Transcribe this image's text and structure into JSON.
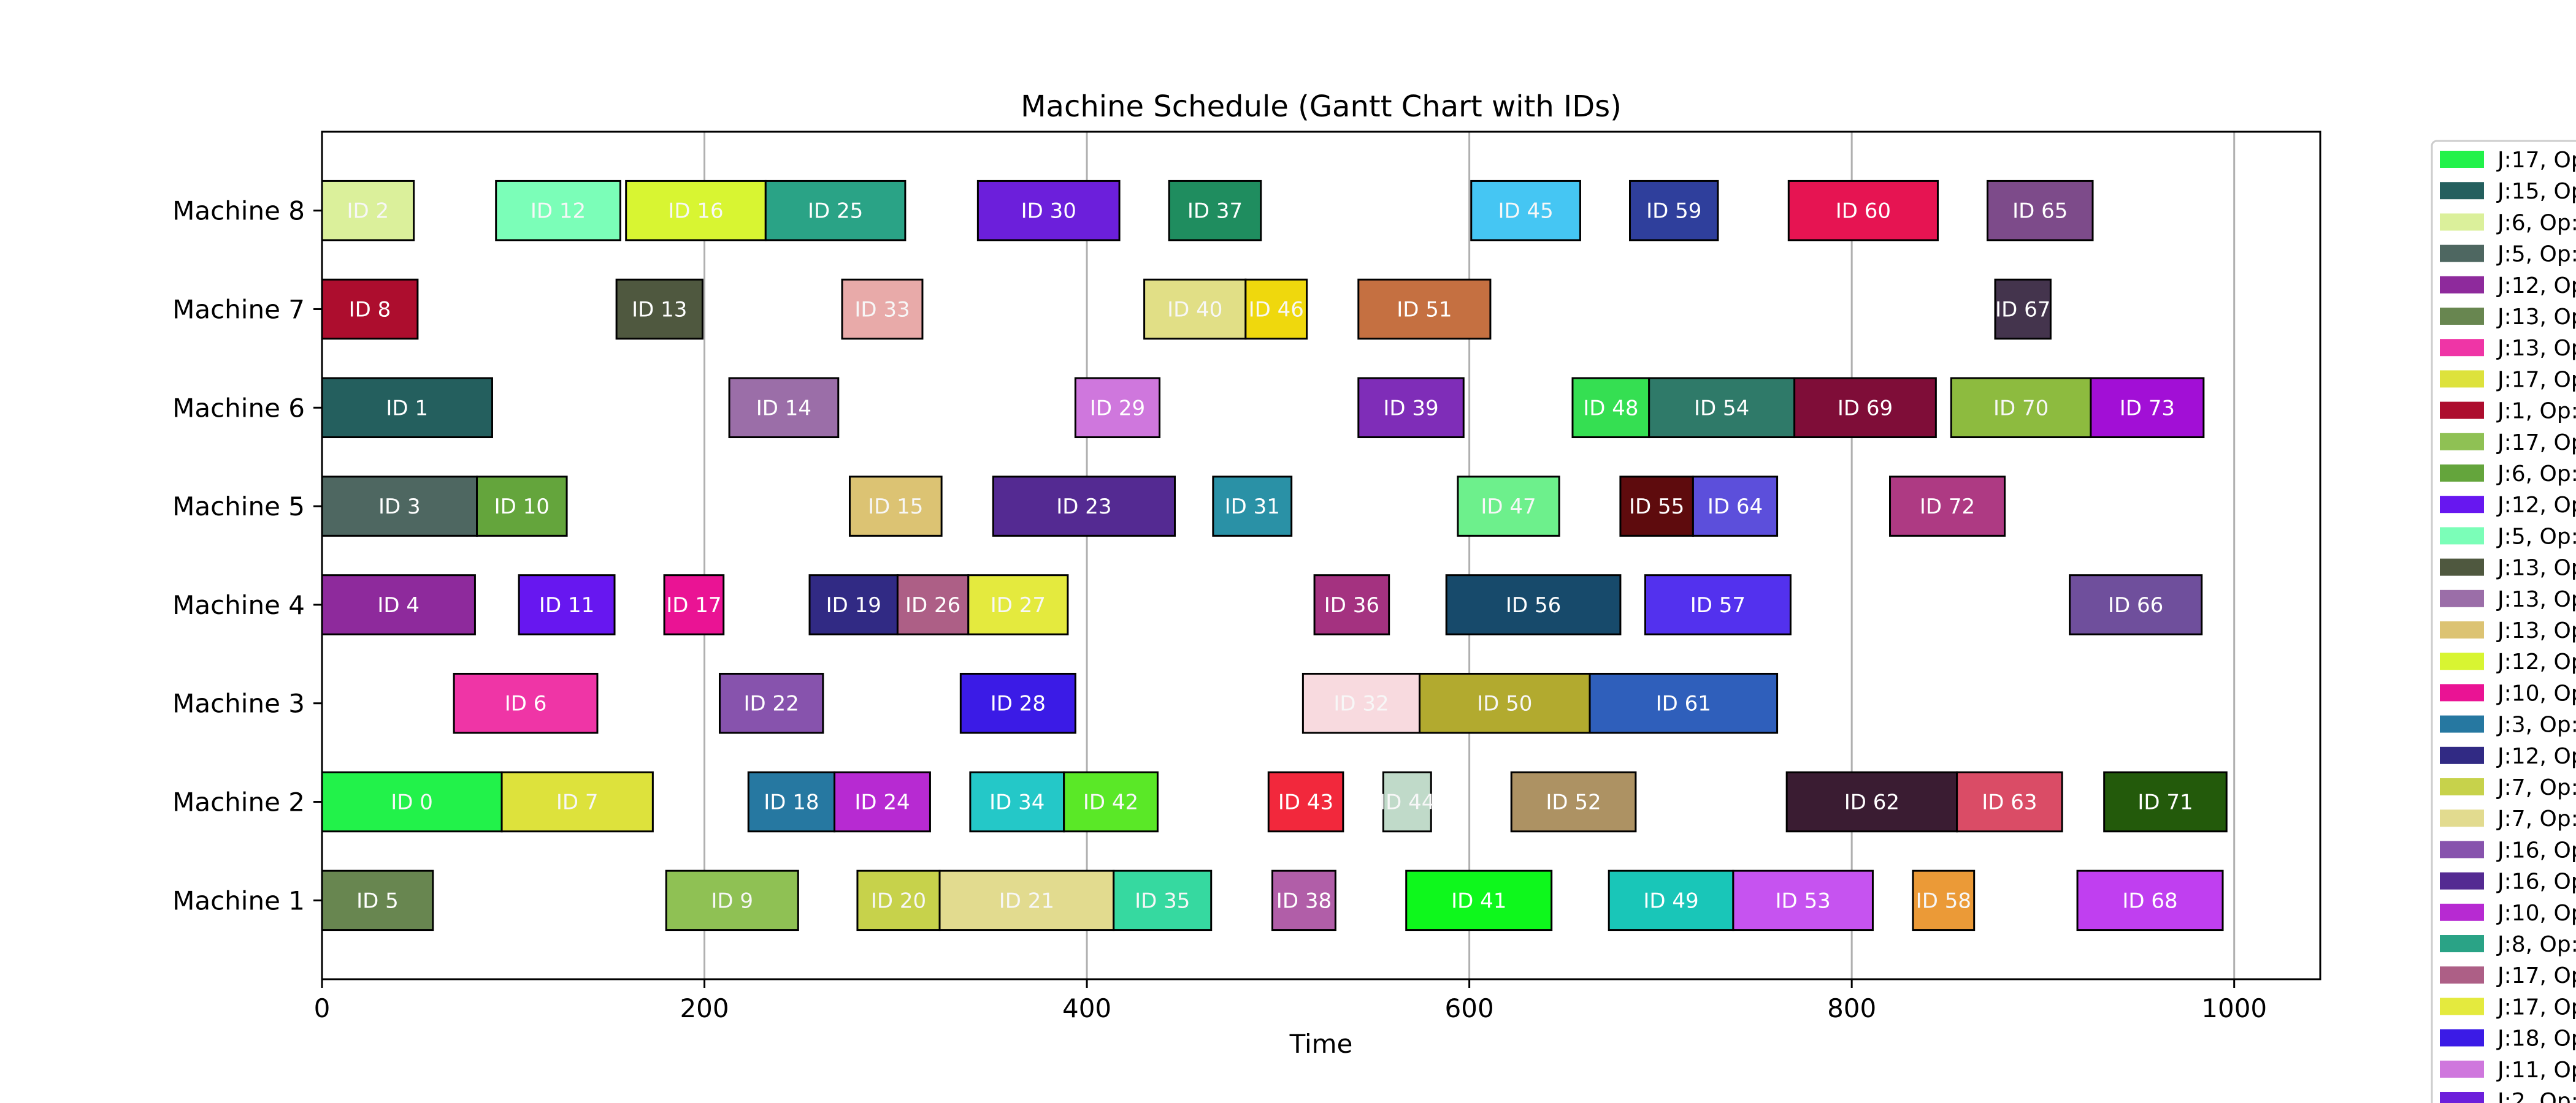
{
  "chart_data": {
    "type": "gantt",
    "title": "Machine Schedule (Gantt Chart with IDs)",
    "xlabel": "Time",
    "ylabel": "",
    "xlim": [
      0,
      1045
    ],
    "xticks": [
      0,
      200,
      400,
      600,
      800,
      1000
    ],
    "grid": "vertical",
    "machines": [
      "Machine 1",
      "Machine 2",
      "Machine 3",
      "Machine 4",
      "Machine 5",
      "Machine 6",
      "Machine 7",
      "Machine 8"
    ],
    "tasks": [
      {
        "id": "ID 0",
        "machine": "Machine 2",
        "start": 0,
        "end": 94,
        "color": "#22f24a"
      },
      {
        "id": "ID 1",
        "machine": "Machine 6",
        "start": 0,
        "end": 89,
        "color": "#245f5e"
      },
      {
        "id": "ID 2",
        "machine": "Machine 8",
        "start": 0,
        "end": 48,
        "color": "#dbf09b"
      },
      {
        "id": "ID 3",
        "machine": "Machine 5",
        "start": 0,
        "end": 81,
        "color": "#4e6761"
      },
      {
        "id": "ID 4",
        "machine": "Machine 4",
        "start": 0,
        "end": 80,
        "color": "#8e2a9c"
      },
      {
        "id": "ID 5",
        "machine": "Machine 1",
        "start": 0,
        "end": 58,
        "color": "#688650"
      },
      {
        "id": "ID 6",
        "machine": "Machine 3",
        "start": 69,
        "end": 144,
        "color": "#ef35a6"
      },
      {
        "id": "ID 7",
        "machine": "Machine 2",
        "start": 94,
        "end": 173,
        "color": "#dde23c"
      },
      {
        "id": "ID 8",
        "machine": "Machine 7",
        "start": 0,
        "end": 50,
        "color": "#ad0d2e"
      },
      {
        "id": "ID 9",
        "machine": "Machine 1",
        "start": 180,
        "end": 249,
        "color": "#8fc154"
      },
      {
        "id": "ID 10",
        "machine": "Machine 5",
        "start": 81,
        "end": 128,
        "color": "#64a53c"
      },
      {
        "id": "ID 11",
        "machine": "Machine 4",
        "start": 103,
        "end": 153,
        "color": "#6717f0"
      },
      {
        "id": "ID 12",
        "machine": "Machine 8",
        "start": 91,
        "end": 156,
        "color": "#7bfeb8"
      },
      {
        "id": "ID 13",
        "machine": "Machine 7",
        "start": 154,
        "end": 199,
        "color": "#4f583f"
      },
      {
        "id": "ID 14",
        "machine": "Machine 6",
        "start": 213,
        "end": 270,
        "color": "#9b6ea8"
      },
      {
        "id": "ID 15",
        "machine": "Machine 5",
        "start": 276,
        "end": 324,
        "color": "#dcc373"
      },
      {
        "id": "ID 16",
        "machine": "Machine 8",
        "start": 159,
        "end": 232,
        "color": "#d8f532"
      },
      {
        "id": "ID 17",
        "machine": "Machine 4",
        "start": 179,
        "end": 210,
        "color": "#ea1394"
      },
      {
        "id": "ID 18",
        "machine": "Machine 2",
        "start": 223,
        "end": 268,
        "color": "#2678a1"
      },
      {
        "id": "ID 19",
        "machine": "Machine 4",
        "start": 255,
        "end": 301,
        "color": "#312a84"
      },
      {
        "id": "ID 20",
        "machine": "Machine 1",
        "start": 280,
        "end": 323,
        "color": "#c7d24b"
      },
      {
        "id": "ID 21",
        "machine": "Machine 1",
        "start": 323,
        "end": 414,
        "color": "#e2db8f"
      },
      {
        "id": "ID 22",
        "machine": "Machine 3",
        "start": 208,
        "end": 262,
        "color": "#8753ad"
      },
      {
        "id": "ID 23",
        "machine": "Machine 5",
        "start": 351,
        "end": 446,
        "color": "#542a92"
      },
      {
        "id": "ID 24",
        "machine": "Machine 2",
        "start": 268,
        "end": 318,
        "color": "#b72ad2"
      },
      {
        "id": "ID 25",
        "machine": "Machine 8",
        "start": 232,
        "end": 305,
        "color": "#2aa386"
      },
      {
        "id": "ID 26",
        "machine": "Machine 4",
        "start": 301,
        "end": 338,
        "color": "#ad5f86"
      },
      {
        "id": "ID 27",
        "machine": "Machine 4",
        "start": 338,
        "end": 390,
        "color": "#e4ea3e"
      },
      {
        "id": "ID 28",
        "machine": "Machine 3",
        "start": 334,
        "end": 394,
        "color": "#3b1be6"
      },
      {
        "id": "ID 29",
        "machine": "Machine 6",
        "start": 394,
        "end": 438,
        "color": "#cf77dd"
      },
      {
        "id": "ID 30",
        "machine": "Machine 8",
        "start": 343,
        "end": 417,
        "color": "#6c1fdb"
      },
      {
        "id": "ID 31",
        "machine": "Machine 5",
        "start": 466,
        "end": 507,
        "color": "#2a91a6"
      },
      {
        "id": "ID 32",
        "machine": "Machine 3",
        "start": 513,
        "end": 574,
        "color": "#f8dadf"
      },
      {
        "id": "ID 33",
        "machine": "Machine 7",
        "start": 272,
        "end": 314,
        "color": "#e8aaa9"
      },
      {
        "id": "ID 34",
        "machine": "Machine 2",
        "start": 339,
        "end": 388,
        "color": "#24c8c8"
      },
      {
        "id": "ID 35",
        "machine": "Machine 1",
        "start": 414,
        "end": 465,
        "color": "#36d9a0"
      },
      {
        "id": "ID 36",
        "machine": "Machine 4",
        "start": 519,
        "end": 558,
        "color": "#a43280"
      },
      {
        "id": "ID 37",
        "machine": "Machine 8",
        "start": 443,
        "end": 491,
        "color": "#1f8d5f"
      },
      {
        "id": "ID 38",
        "machine": "Machine 1",
        "start": 497,
        "end": 530,
        "color": "#b15ea8"
      },
      {
        "id": "ID 39",
        "machine": "Machine 6",
        "start": 542,
        "end": 597,
        "color": "#7f2db8"
      },
      {
        "id": "ID 40",
        "machine": "Machine 7",
        "start": 430,
        "end": 483,
        "color": "#e1df86"
      },
      {
        "id": "ID 41",
        "machine": "Machine 1",
        "start": 567,
        "end": 643,
        "color": "#0ef81c"
      },
      {
        "id": "ID 42",
        "machine": "Machine 2",
        "start": 388,
        "end": 437,
        "color": "#5ae827"
      },
      {
        "id": "ID 43",
        "machine": "Machine 2",
        "start": 495,
        "end": 534,
        "color": "#f2283c"
      },
      {
        "id": "ID 44",
        "machine": "Machine 2",
        "start": 555,
        "end": 580,
        "color": "#c0dac9"
      },
      {
        "id": "ID 45",
        "machine": "Machine 8",
        "start": 601,
        "end": 658,
        "color": "#45c6f3"
      },
      {
        "id": "ID 46",
        "machine": "Machine 7",
        "start": 483,
        "end": 515,
        "color": "#efd80d"
      },
      {
        "id": "ID 47",
        "machine": "Machine 5",
        "start": 594,
        "end": 647,
        "color": "#6df08c"
      },
      {
        "id": "ID 48",
        "machine": "Machine 6",
        "start": 654,
        "end": 694,
        "color": "#35df52"
      },
      {
        "id": "ID 49",
        "machine": "Machine 1",
        "start": 673,
        "end": 738,
        "color": "#19c6b8"
      },
      {
        "id": "ID 50",
        "machine": "Machine 3",
        "start": 574,
        "end": 663,
        "color": "#b2aa2f"
      },
      {
        "id": "ID 51",
        "machine": "Machine 7",
        "start": 542,
        "end": 611,
        "color": "#c57041"
      },
      {
        "id": "ID 52",
        "machine": "Machine 2",
        "start": 622,
        "end": 687,
        "color": "#ad9263"
      },
      {
        "id": "ID 53",
        "machine": "Machine 1",
        "start": 738,
        "end": 811,
        "color": "#c653f0"
      },
      {
        "id": "ID 54",
        "machine": "Machine 6",
        "start": 694,
        "end": 770,
        "color": "#2f7a69"
      },
      {
        "id": "ID 55",
        "machine": "Machine 5",
        "start": 679,
        "end": 717,
        "color": "#5e0b0d"
      },
      {
        "id": "ID 56",
        "machine": "Machine 4",
        "start": 588,
        "end": 679,
        "color": "#174a6b"
      },
      {
        "id": "ID 57",
        "machine": "Machine 4",
        "start": 692,
        "end": 768,
        "color": "#5331ee"
      },
      {
        "id": "ID 58",
        "machine": "Machine 1",
        "start": 832,
        "end": 864,
        "color": "#eb9a37"
      },
      {
        "id": "ID 59",
        "machine": "Machine 8",
        "start": 684,
        "end": 730,
        "color": "#2f3f9c"
      },
      {
        "id": "ID 60",
        "machine": "Machine 8",
        "start": 767,
        "end": 845,
        "color": "#e61452"
      },
      {
        "id": "ID 61",
        "machine": "Machine 3",
        "start": 663,
        "end": 761,
        "color": "#2f5fbb"
      },
      {
        "id": "ID 62",
        "machine": "Machine 2",
        "start": 766,
        "end": 855,
        "color": "#3a1c32"
      },
      {
        "id": "ID 63",
        "machine": "Machine 2",
        "start": 855,
        "end": 910,
        "color": "#da4c66"
      },
      {
        "id": "ID 64",
        "machine": "Machine 5",
        "start": 717,
        "end": 761,
        "color": "#5c4fdb"
      },
      {
        "id": "ID 65",
        "machine": "Machine 8",
        "start": 871,
        "end": 926,
        "color": "#7d4b8a"
      },
      {
        "id": "ID 66",
        "machine": "Machine 4",
        "start": 914,
        "end": 983,
        "color": "#6f4f9c"
      },
      {
        "id": "ID 67",
        "machine": "Machine 7",
        "start": 875,
        "end": 904,
        "color": "#44344d"
      },
      {
        "id": "ID 68",
        "machine": "Machine 1",
        "start": 918,
        "end": 994,
        "color": "#c03ff0"
      },
      {
        "id": "ID 69",
        "machine": "Machine 6",
        "start": 770,
        "end": 844,
        "color": "#7f0d38"
      },
      {
        "id": "ID 70",
        "machine": "Machine 6",
        "start": 852,
        "end": 925,
        "color": "#8dbb3f"
      },
      {
        "id": "ID 71",
        "machine": "Machine 2",
        "start": 932,
        "end": 996,
        "color": "#235a0b"
      },
      {
        "id": "ID 72",
        "machine": "Machine 5",
        "start": 820,
        "end": 880,
        "color": "#ae3a83"
      },
      {
        "id": "ID 73",
        "machine": "Machine 6",
        "start": 925,
        "end": 984,
        "color": "#a20fd6"
      }
    ],
    "legend": {
      "placement": "right, outside plot (clipped)",
      "entries": [
        {
          "label": "J:17, Op",
          "color": "#22f24a"
        },
        {
          "label": "J:15, Op",
          "color": "#245f5e"
        },
        {
          "label": "J:6, Op:",
          "color": "#dbf09b"
        },
        {
          "label": "J:5, Op:",
          "color": "#4e6761"
        },
        {
          "label": "J:12, Op",
          "color": "#8e2a9c"
        },
        {
          "label": "J:13, Op",
          "color": "#688650"
        },
        {
          "label": "J:13, Op",
          "color": "#ef35a6"
        },
        {
          "label": "J:17, Op",
          "color": "#dde23c"
        },
        {
          "label": "J:1, Op:",
          "color": "#ad0d2e"
        },
        {
          "label": "J:17, Op",
          "color": "#8fc154"
        },
        {
          "label": "J:6, Op:",
          "color": "#64a53c"
        },
        {
          "label": "J:12, Op",
          "color": "#6717f0"
        },
        {
          "label": "J:5, Op:",
          "color": "#7bfeb8"
        },
        {
          "label": "J:13, Op",
          "color": "#4f583f"
        },
        {
          "label": "J:13, Op",
          "color": "#9b6ea8"
        },
        {
          "label": "J:13, Op",
          "color": "#dcc373"
        },
        {
          "label": "J:12, Op",
          "color": "#d8f532"
        },
        {
          "label": "J:10, Op",
          "color": "#ea1394"
        },
        {
          "label": "J:3, Op:",
          "color": "#2678a1"
        },
        {
          "label": "J:12, Op",
          "color": "#312a84"
        },
        {
          "label": "J:7, Op:",
          "color": "#c7d24b"
        },
        {
          "label": "J:7, Op:",
          "color": "#e2db8f"
        },
        {
          "label": "J:16, Op",
          "color": "#8753ad"
        },
        {
          "label": "J:16, Op",
          "color": "#542a92"
        },
        {
          "label": "J:10, Op",
          "color": "#b72ad2"
        },
        {
          "label": "J:8, Op:",
          "color": "#2aa386"
        },
        {
          "label": "J:17, Op",
          "color": "#ad5f86"
        },
        {
          "label": "J:17, Op",
          "color": "#e4ea3e"
        },
        {
          "label": "J:18, Op",
          "color": "#3b1be6"
        },
        {
          "label": "J:11, Op",
          "color": "#cf77dd"
        },
        {
          "label": "J:2, Op:",
          "color": "#6c1fdb"
        }
      ]
    }
  }
}
